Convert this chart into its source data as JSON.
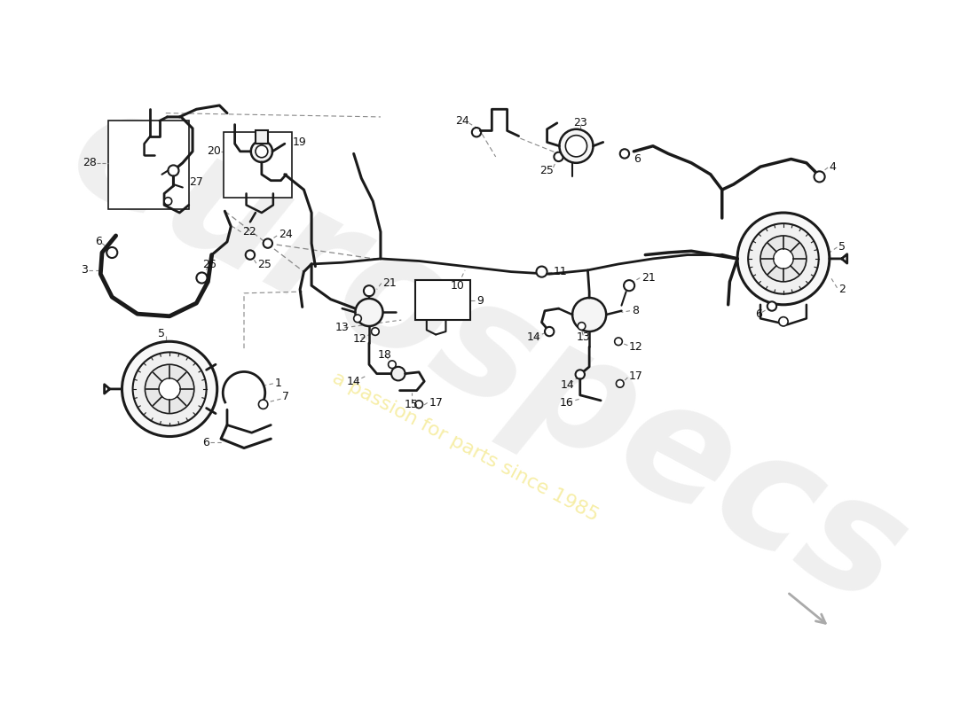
{
  "background_color": "#ffffff",
  "line_color": "#1a1a1a",
  "dashed_line_color": "#888888",
  "label_fontsize": 9,
  "watermark_text": "eurospecs",
  "watermark_subtext": "a passion for parts since 1985",
  "fig_width": 11.0,
  "fig_height": 8.0,
  "dpi": 100,
  "xlim": [
    0,
    11
  ],
  "ylim": [
    0,
    8
  ]
}
